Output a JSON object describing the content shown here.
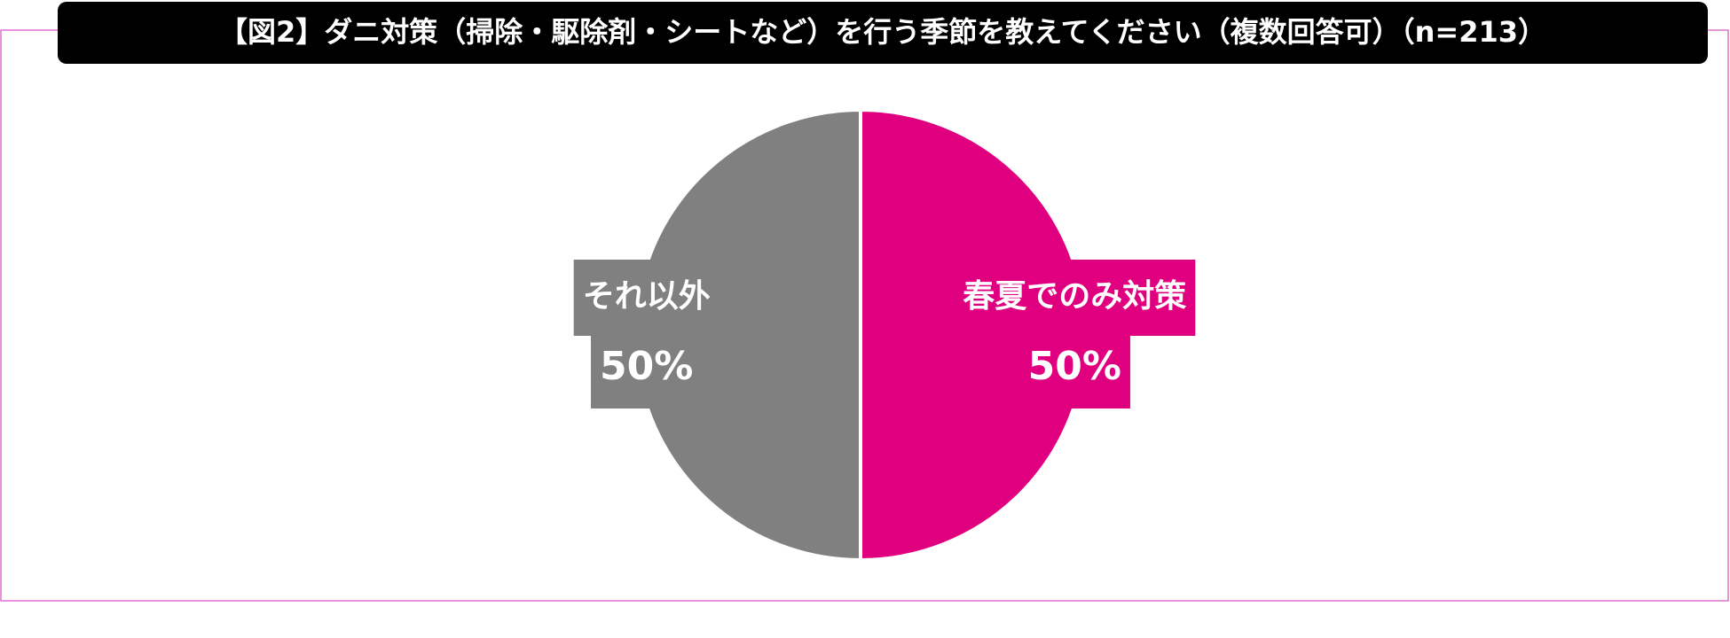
{
  "chart_data": {
    "type": "pie",
    "title": "【図2】ダニ対策（掃除・駆除剤・シートなど）を行う季節を教えてください（複数回答可）（n=213）",
    "categories": [
      "春夏でのみ対策",
      "それ以外"
    ],
    "values": [
      50,
      50
    ],
    "value_labels": [
      "50%",
      "50%"
    ],
    "colors": [
      "#e0007f",
      "#808080"
    ]
  }
}
